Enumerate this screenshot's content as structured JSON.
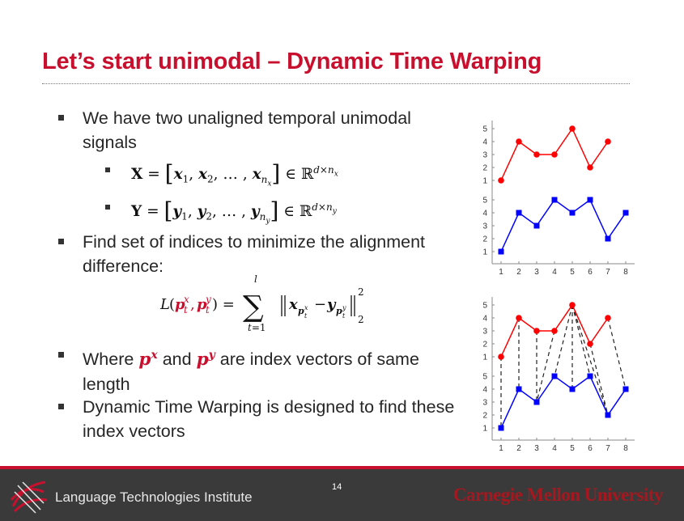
{
  "slide": {
    "title": "Let’s start unimodal – Dynamic Time Warping",
    "page_number": "14"
  },
  "bullets": [
    {
      "text": "We have two unaligned temporal unimodal signals"
    },
    {
      "text": "Find set of indices to minimize the alignment difference:"
    },
    {
      "pre": "Where",
      "mid": "and",
      "post": "are index vectors of same length"
    },
    {
      "text": "Dynamic Time Warping is designed to find these index vectors"
    }
  ],
  "math": {
    "X_def": "X = [x₁, x₂, …, xₙₓ] ∈ ℝ^(d×nₓ)",
    "Y_def": "Y = [y₁, y₂, …, yₙᵧ] ∈ ℝ^(d×nᵧ)",
    "loss": "L(pₜˣ, pₜʸ) = Σₜ₌₁ˡ ‖x_(pₜˣ) − y_(pₜʸ)‖₂²",
    "px": "p^x",
    "py": "p^y"
  },
  "colors": {
    "title": "#c8102e",
    "signal_x": "#ff0000",
    "signal_y": "#0000ff",
    "footer_bg": "#3a3a3a"
  },
  "chart_data": [
    {
      "type": "line",
      "x": [
        1,
        2,
        3,
        4,
        5,
        6,
        7,
        8
      ],
      "xticks": [
        1,
        2,
        3,
        4,
        5,
        6,
        7,
        8
      ],
      "series": [
        {
          "color": "#ff0000",
          "marker": "circle",
          "x": [
            1,
            2,
            3,
            4,
            5,
            6,
            7
          ],
          "values": [
            1,
            4,
            3,
            3,
            5,
            2,
            4
          ]
        },
        {
          "color": "#0000ff",
          "marker": "square",
          "x": [
            1,
            2,
            3,
            4,
            5,
            6,
            7,
            8
          ],
          "values": [
            1,
            4,
            3,
            5,
            4,
            5,
            2,
            4
          ]
        }
      ],
      "yticks_top": [
        1,
        2,
        3,
        4,
        5
      ],
      "yticks_bottom": [
        1,
        2,
        3,
        4,
        5
      ],
      "alignment": []
    },
    {
      "type": "line",
      "x": [
        1,
        2,
        3,
        4,
        5,
        6,
        7,
        8
      ],
      "xticks": [
        1,
        2,
        3,
        4,
        5,
        6,
        7,
        8
      ],
      "series": [
        {
          "color": "#ff0000",
          "marker": "circle",
          "x": [
            1,
            2,
            3,
            4,
            5,
            6,
            7
          ],
          "values": [
            1,
            4,
            3,
            3,
            5,
            2,
            4
          ]
        },
        {
          "color": "#0000ff",
          "marker": "square",
          "x": [
            1,
            2,
            3,
            4,
            5,
            6,
            7,
            8
          ],
          "values": [
            1,
            4,
            3,
            5,
            4,
            5,
            2,
            4
          ]
        }
      ],
      "yticks_top": [
        1,
        2,
        3,
        4,
        5
      ],
      "yticks_bottom": [
        1,
        2,
        3,
        4,
        5
      ],
      "alignment": [
        [
          1,
          1
        ],
        [
          2,
          2
        ],
        [
          3,
          3
        ],
        [
          4,
          3
        ],
        [
          5,
          4
        ],
        [
          5,
          5
        ],
        [
          5,
          6
        ],
        [
          5,
          7
        ],
        [
          6,
          7
        ],
        [
          7,
          8
        ]
      ]
    }
  ],
  "footer": {
    "institute": "Language Technologies Institute",
    "university": "Carnegie Mellon University"
  }
}
